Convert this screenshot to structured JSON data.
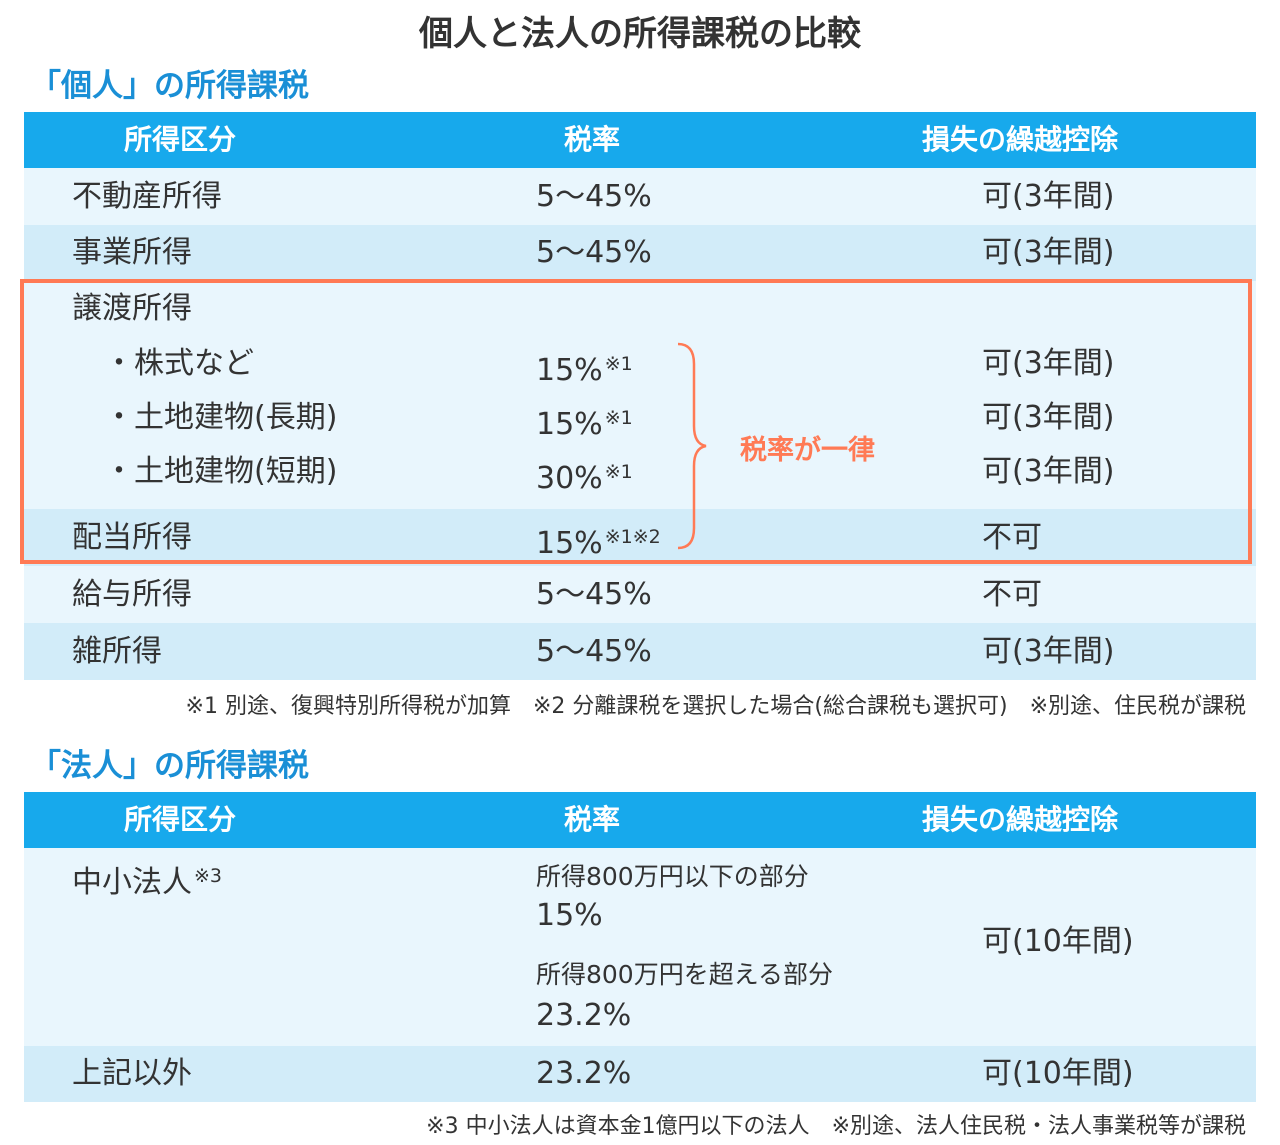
{
  "title": "個人と法人の所得課税の比較",
  "individual": {
    "heading": "「個人」の所得課税",
    "headers": {
      "col1": "所得区分",
      "col2": "税率",
      "col3": "損失の繰越控除"
    },
    "rows": [
      {
        "category": "不動産所得",
        "rate": "5〜45%",
        "carry": "可(3年間)"
      },
      {
        "category": "事業所得",
        "rate": "5〜45%",
        "carry": "可(3年間)"
      },
      {
        "category": "譲渡所得",
        "rate": "",
        "carry": ""
      },
      {
        "category": "・株式など",
        "rate": "15%",
        "rate_note": "※1",
        "carry": "可(3年間)"
      },
      {
        "category": "・土地建物(長期)",
        "rate": "15%",
        "rate_note": "※1",
        "carry": "可(3年間)"
      },
      {
        "category": "・土地建物(短期)",
        "rate": "30%",
        "rate_note": "※1",
        "carry": "可(3年間)"
      },
      {
        "category": "配当所得",
        "rate": "15%",
        "rate_note": "※1※2",
        "carry": "不可"
      },
      {
        "category": "給与所得",
        "rate": "5〜45%",
        "carry": "不可"
      },
      {
        "category": "雑所得",
        "rate": "5〜45%",
        "carry": "可(3年間)"
      }
    ],
    "uniform_label": "税率が一律",
    "note": "※1 別途、復興特別所得税が加算　※2 分離課税を選択した場合(総合課税も選択可)　※別途、住民税が課税"
  },
  "corporate": {
    "heading": "「法人」の所得課税",
    "headers": {
      "col1": "所得区分",
      "col2": "税率",
      "col3": "損失の繰越控除"
    },
    "sme": {
      "category": "中小法人",
      "category_note": "※3",
      "rate_label_1": "所得800万円以下の部分",
      "rate_1": "15%",
      "rate_label_2": "所得800万円を超える部分",
      "rate_2": "23.2%",
      "carry": "可(10年間)"
    },
    "other": {
      "category": "上記以外",
      "rate": "23.2%",
      "carry": "可(10年間)"
    },
    "note": "※3 中小法人は資本金1億円以下の法人　※別途、法人住民税・法人事業税等が課税"
  },
  "colors": {
    "header_bg": "#17a9ec",
    "heading": "#1a8fd6",
    "highlight": "#ff7a55",
    "row_light": "#e9f6fd",
    "row_mid": "#d2ecf9"
  }
}
